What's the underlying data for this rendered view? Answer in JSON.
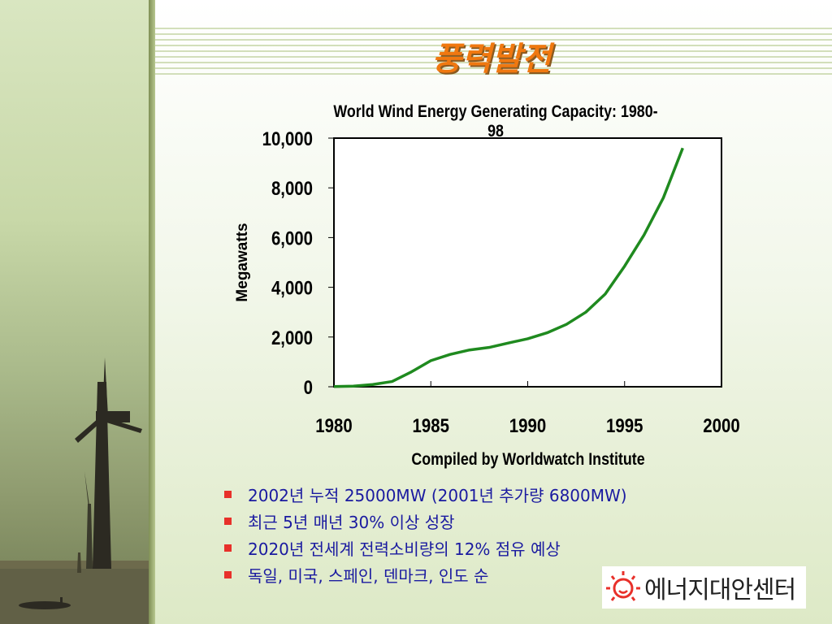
{
  "slide": {
    "title": "풍력발전"
  },
  "chart_data": {
    "type": "line",
    "title": "World Wind Energy Generating Capacity: 1980-98",
    "ylabel": "Megawatts",
    "xlabel": "",
    "source": "Compiled by Worldwatch Institute",
    "xlim": [
      1980,
      2000
    ],
    "ylim": [
      0,
      10000
    ],
    "x_ticks": [
      "1980",
      "1985",
      "1990",
      "1995",
      "2000"
    ],
    "y_ticks": [
      "0",
      "2,000",
      "4,000",
      "6,000",
      "8,000",
      "10,000"
    ],
    "series": [
      {
        "color": "#1f8a1f",
        "x": [
          1980,
          1981,
          1982,
          1983,
          1984,
          1985,
          1986,
          1987,
          1988,
          1989,
          1990,
          1991,
          1992,
          1993,
          1994,
          1995,
          1996,
          1997,
          1998
        ],
        "values": [
          10,
          25,
          90,
          210,
          600,
          1050,
          1300,
          1480,
          1580,
          1760,
          1930,
          2170,
          2510,
          3000,
          3730,
          4850,
          6100,
          7600,
          9600
        ]
      }
    ]
  },
  "bullets": [
    "2002년 누적 25000MW (2001년 추가량 6800MW)",
    "최근 5년 매년 30% 이상 성장",
    "2020년 전세계 전력소비량의 12% 점유 예상",
    "독일, 미국, 스페인, 덴마크, 인도 순"
  ],
  "logo": {
    "text": "에너지대안센터",
    "colors": {
      "accent": "#e8302a"
    }
  }
}
